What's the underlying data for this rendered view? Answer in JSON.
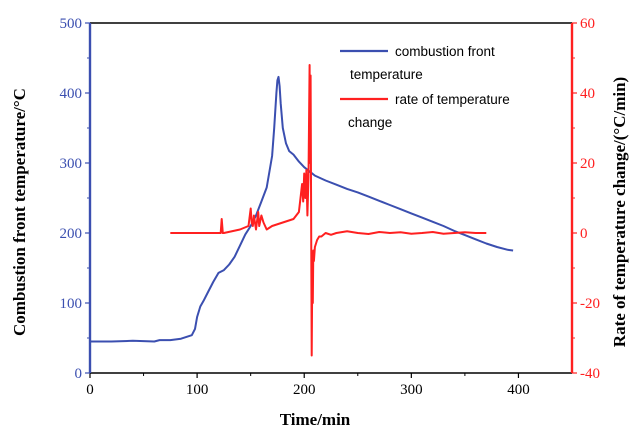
{
  "chart_data": {
    "type": "line",
    "xlabel": "Time/min",
    "ylabel_left": "Combustion front temperature/°C",
    "ylabel_right": "Rate of temperature change/(°C/min)",
    "xlim": [
      0,
      450
    ],
    "ylim_left": [
      0,
      500
    ],
    "ylim_right": [
      -40,
      60
    ],
    "x_ticks": [
      0,
      100,
      200,
      300,
      400
    ],
    "x_tick_labels": [
      "0",
      "100",
      "200",
      "300",
      "400"
    ],
    "y_left_ticks": [
      0,
      100,
      200,
      300,
      400,
      500
    ],
    "y_left_tick_labels": [
      "0",
      "100",
      "200",
      "300",
      "400",
      "500"
    ],
    "y_right_ticks": [
      -40,
      -20,
      0,
      20,
      40,
      60
    ],
    "y_right_tick_labels": [
      "-40",
      "-20",
      "0",
      "20",
      "40",
      "60"
    ],
    "grid": false,
    "legend_position": "top-right",
    "colors": {
      "left_axis": "#3b4fb0",
      "right_axis": "#ff2020"
    },
    "series": [
      {
        "name": "combustion front temperature",
        "legend_lines": [
          "combustion front",
          "temperature"
        ],
        "axis": "left",
        "color": "#3b4fb0",
        "x": [
          0,
          20,
          40,
          60,
          65,
          75,
          85,
          95,
          98,
          100,
          103,
          106,
          110,
          115,
          120,
          125,
          130,
          135,
          140,
          145,
          150,
          155,
          160,
          165,
          170,
          172,
          174,
          175,
          176,
          177,
          178,
          180,
          183,
          186,
          190,
          195,
          200,
          205,
          210,
          220,
          230,
          240,
          250,
          260,
          270,
          280,
          290,
          300,
          310,
          320,
          330,
          340,
          350,
          360,
          370,
          380,
          390,
          395
        ],
        "y": [
          45,
          45,
          46,
          45,
          47,
          47,
          49,
          54,
          63,
          80,
          95,
          103,
          115,
          130,
          143,
          147,
          155,
          166,
          182,
          198,
          210,
          225,
          245,
          265,
          310,
          350,
          400,
          418,
          423,
          410,
          385,
          350,
          328,
          317,
          312,
          302,
          294,
          288,
          282,
          275,
          269,
          263,
          258,
          252,
          246,
          240,
          234,
          228,
          222,
          216,
          210,
          203,
          197,
          191,
          185,
          180,
          176,
          175
        ]
      },
      {
        "name": "rate of temperature change",
        "legend_lines": [
          "rate of temperature",
          "change"
        ],
        "axis": "right",
        "color": "#ff2020",
        "x": [
          75,
          90,
          110,
          122,
          123,
          124,
          125,
          140,
          148,
          150,
          151,
          152,
          153,
          155,
          157,
          158,
          160,
          162,
          165,
          170,
          180,
          190,
          195,
          198,
          199,
          200,
          201,
          202,
          203,
          204,
          205,
          205.5,
          206,
          206.5,
          207,
          207.5,
          208,
          208.5,
          209,
          210,
          211,
          212,
          214,
          216,
          220,
          225,
          230,
          240,
          250,
          260,
          270,
          280,
          290,
          300,
          310,
          320,
          330,
          340,
          350,
          360,
          370
        ],
        "y": [
          0,
          0,
          0,
          0,
          4,
          0,
          0,
          1,
          2,
          7,
          3,
          2,
          5,
          1,
          6,
          2,
          5,
          3,
          1,
          2,
          3,
          4,
          6,
          14,
          9,
          17,
          10,
          18,
          5,
          16,
          48,
          20,
          45,
          0,
          -35,
          -10,
          -20,
          -5,
          -8,
          -4,
          -3,
          -2,
          -1,
          -1,
          0,
          -0.5,
          0,
          0.5,
          0,
          -0.3,
          0.3,
          0,
          0.2,
          -0.2,
          0,
          0.3,
          -0.2,
          0,
          0.2,
          0,
          0
        ]
      }
    ]
  }
}
